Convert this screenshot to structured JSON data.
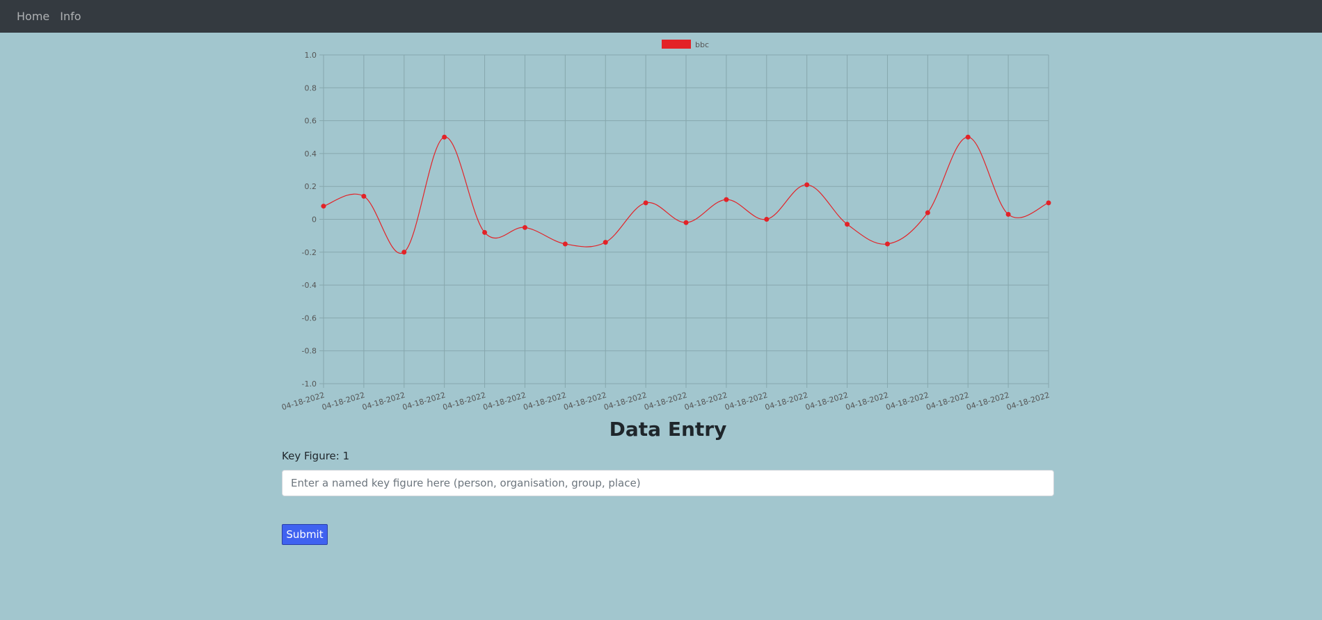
{
  "nav": {
    "items": [
      {
        "label": "Home"
      },
      {
        "label": "Info"
      }
    ]
  },
  "chart_data": {
    "type": "line",
    "categories": [
      "04-18-2022",
      "04-18-2022",
      "04-18-2022",
      "04-18-2022",
      "04-18-2022",
      "04-18-2022",
      "04-18-2022",
      "04-18-2022",
      "04-18-2022",
      "04-18-2022",
      "04-18-2022",
      "04-18-2022",
      "04-18-2022",
      "04-18-2022",
      "04-18-2022",
      "04-18-2022",
      "04-18-2022",
      "04-18-2022",
      "04-18-2022"
    ],
    "series": [
      {
        "name": "bbc",
        "color": "#e32227",
        "values": [
          0.08,
          0.14,
          -0.2,
          0.5,
          -0.08,
          -0.05,
          -0.15,
          -0.14,
          0.1,
          -0.02,
          0.12,
          0.0,
          0.21,
          -0.03,
          -0.15,
          0.04,
          0.5,
          0.03,
          0.1
        ]
      }
    ],
    "ylim": [
      -1.0,
      1.0
    ],
    "yticks": [
      "1.0",
      "0.8",
      "0.6",
      "0.4",
      "0.2",
      "0",
      "-0.2",
      "-0.4",
      "-0.6",
      "-0.8",
      "-1.0"
    ],
    "grid": true,
    "legend": "top-center",
    "title": "",
    "xlabel": "",
    "ylabel": ""
  },
  "form": {
    "title": "Data Entry",
    "label": "Key Figure: 1",
    "placeholder": "Enter a named key figure here (person, organisation, group, place)",
    "submit_label": "Submit"
  }
}
